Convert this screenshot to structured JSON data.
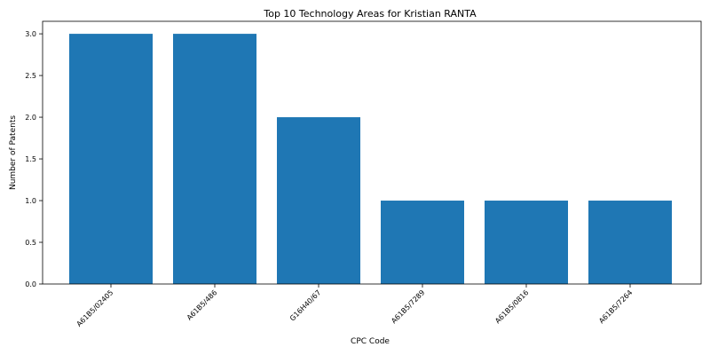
{
  "chart_data": {
    "type": "bar",
    "title": "Top 10 Technology Areas for Kristian RANTA",
    "xlabel": "CPC Code",
    "ylabel": "Number of Patents",
    "categories": [
      "A61B5/02405",
      "A61B5/486",
      "G16H40/67",
      "A61B5/7289",
      "A61B5/0816",
      "A61B5/7264"
    ],
    "values": [
      3,
      3,
      2,
      1,
      1,
      1
    ],
    "ylim": [
      0,
      3.15
    ],
    "yticks": [
      "0.0",
      "0.5",
      "1.0",
      "1.5",
      "2.0",
      "2.5",
      "3.0"
    ],
    "bar_color": "#1f77b4",
    "grid": false,
    "legend": "none"
  }
}
